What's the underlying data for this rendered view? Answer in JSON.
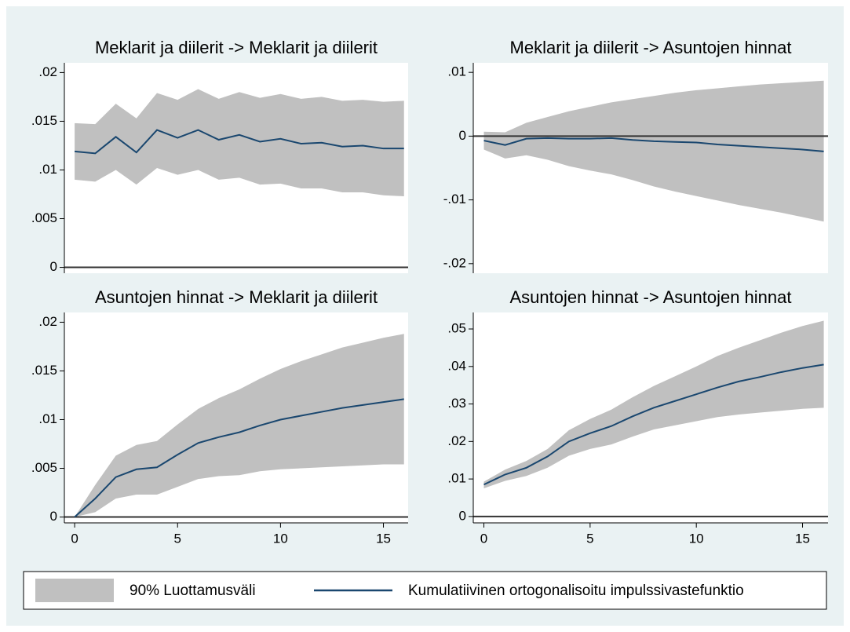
{
  "chart_data": [
    {
      "type": "line",
      "title": "Meklarit ja diilerit -> Meklarit ja diilerit",
      "x": [
        0,
        1,
        2,
        3,
        4,
        5,
        6,
        7,
        8,
        9,
        10,
        11,
        12,
        13,
        14,
        15,
        16
      ],
      "values": [
        0.0119,
        0.0117,
        0.0134,
        0.0118,
        0.0141,
        0.0133,
        0.0141,
        0.0131,
        0.0136,
        0.0129,
        0.0132,
        0.0127,
        0.0128,
        0.0124,
        0.0125,
        0.0122,
        0.0122
      ],
      "upper": [
        0.0148,
        0.0147,
        0.0168,
        0.0153,
        0.0179,
        0.0172,
        0.0183,
        0.0173,
        0.018,
        0.0174,
        0.0178,
        0.0173,
        0.0175,
        0.0171,
        0.0172,
        0.017,
        0.0171
      ],
      "lower": [
        0.009,
        0.0088,
        0.01,
        0.0085,
        0.0102,
        0.0095,
        0.01,
        0.009,
        0.0092,
        0.0085,
        0.0086,
        0.0081,
        0.0081,
        0.0077,
        0.0077,
        0.0074,
        0.0073
      ],
      "xlim": [
        -0.5,
        16.2
      ],
      "ylim": [
        -0.0006,
        0.021
      ],
      "yticks": [
        0,
        {
          "value": 0.005,
          "label": ".005"
        },
        {
          "value": 0.01,
          "label": ".01"
        },
        {
          "value": 0.015,
          "label": ".015"
        },
        {
          "value": 0.02,
          "label": ".02"
        }
      ]
    },
    {
      "type": "line",
      "title": "Meklarit ja diilerit -> Asuntojen hinnat",
      "x": [
        0,
        1,
        2,
        3,
        4,
        5,
        6,
        7,
        8,
        9,
        10,
        11,
        12,
        13,
        14,
        15,
        16
      ],
      "values": [
        -0.0007,
        -0.0014,
        -0.0004,
        -0.0003,
        -0.0004,
        -0.0004,
        -0.0003,
        -0.0006,
        -0.0008,
        -0.0009,
        -0.001,
        -0.0013,
        -0.0015,
        -0.0017,
        -0.0019,
        -0.0021,
        -0.0024
      ],
      "upper": [
        0.0007,
        0.0006,
        0.0021,
        0.003,
        0.0039,
        0.0046,
        0.0053,
        0.0058,
        0.0063,
        0.0068,
        0.0072,
        0.0075,
        0.0078,
        0.0081,
        0.0083,
        0.0085,
        0.0087
      ],
      "lower": [
        -0.0021,
        -0.0035,
        -0.003,
        -0.0037,
        -0.0047,
        -0.0054,
        -0.006,
        -0.0069,
        -0.0079,
        -0.0087,
        -0.0094,
        -0.0101,
        -0.0108,
        -0.0114,
        -0.012,
        -0.0127,
        -0.0134
      ],
      "xlim": [
        -0.5,
        16.2
      ],
      "ylim": [
        -0.0215,
        0.0115
      ],
      "yticks": [
        {
          "value": -0.02,
          "label": "-.02"
        },
        {
          "value": -0.01,
          "label": "-.01"
        },
        0,
        {
          "value": 0.01,
          "label": ".01"
        }
      ]
    },
    {
      "type": "line",
      "title": "Asuntojen hinnat -> Meklarit ja diilerit",
      "x": [
        0,
        1,
        2,
        3,
        4,
        5,
        6,
        7,
        8,
        9,
        10,
        11,
        12,
        13,
        14,
        15,
        16
      ],
      "values": [
        0,
        0.0019,
        0.0041,
        0.0049,
        0.0051,
        0.0064,
        0.0076,
        0.0082,
        0.0087,
        0.0094,
        0.01,
        0.0104,
        0.0108,
        0.0112,
        0.0115,
        0.0118,
        0.0121
      ],
      "upper": [
        0,
        0.0033,
        0.0063,
        0.0074,
        0.0078,
        0.0095,
        0.0111,
        0.0122,
        0.0131,
        0.0142,
        0.0152,
        0.016,
        0.0167,
        0.0174,
        0.0179,
        0.0184,
        0.0188
      ],
      "lower": [
        0,
        0.0005,
        0.0019,
        0.0023,
        0.0023,
        0.0031,
        0.0039,
        0.0042,
        0.0043,
        0.0047,
        0.0049,
        0.005,
        0.0051,
        0.0052,
        0.0053,
        0.0054,
        0.0054
      ],
      "xlim": [
        -0.5,
        16.2
      ],
      "ylim": [
        -0.0006,
        0.021
      ],
      "xticks": [
        0,
        5,
        10,
        15
      ],
      "yticks": [
        0,
        {
          "value": 0.005,
          "label": ".005"
        },
        {
          "value": 0.01,
          "label": ".01"
        },
        {
          "value": 0.015,
          "label": ".015"
        },
        {
          "value": 0.02,
          "label": ".02"
        }
      ]
    },
    {
      "type": "line",
      "title": "Asuntojen hinnat -> Asuntojen hinnat",
      "x": [
        0,
        1,
        2,
        3,
        4,
        5,
        6,
        7,
        8,
        9,
        10,
        11,
        12,
        13,
        14,
        15,
        16
      ],
      "values": [
        0.0085,
        0.0112,
        0.013,
        0.016,
        0.02,
        0.0222,
        0.0241,
        0.0267,
        0.029,
        0.0308,
        0.0326,
        0.0344,
        0.036,
        0.0372,
        0.0385,
        0.0396,
        0.0405
      ],
      "upper": [
        0.0093,
        0.0125,
        0.0148,
        0.018,
        0.023,
        0.026,
        0.0285,
        0.0318,
        0.0348,
        0.0374,
        0.04,
        0.0428,
        0.045,
        0.047,
        0.049,
        0.0508,
        0.0522
      ],
      "lower": [
        0.0075,
        0.0095,
        0.0108,
        0.013,
        0.0162,
        0.018,
        0.0192,
        0.0213,
        0.0232,
        0.0243,
        0.0254,
        0.0265,
        0.0272,
        0.0277,
        0.0282,
        0.0287,
        0.029
      ],
      "xlim": [
        -0.5,
        16.2
      ],
      "ylim": [
        -0.0017,
        0.0544
      ],
      "xticks": [
        0,
        5,
        10,
        15
      ],
      "yticks": [
        0,
        {
          "value": 0.01,
          "label": ".01"
        },
        {
          "value": 0.02,
          "label": ".02"
        },
        {
          "value": 0.03,
          "label": ".03"
        },
        {
          "value": 0.04,
          "label": ".04"
        },
        {
          "value": 0.05,
          "label": ".05"
        }
      ]
    }
  ],
  "legend": [
    {
      "name": "90% Luottamusväli",
      "color": "#c0c0c0"
    },
    {
      "name": "Kumulatiivinen ortogonalisoitu impulssivastefunktio",
      "color": "#1a476f"
    }
  ]
}
